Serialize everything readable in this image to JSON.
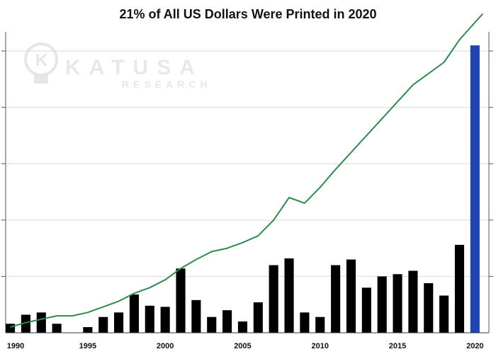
{
  "chart_data": {
    "type": "bar",
    "title": "21% of All US Dollars Were Printed in 2020",
    "x_tick_labels": [
      "1990",
      "1995",
      "2000",
      "2005",
      "2010",
      "2015",
      "2020"
    ],
    "x": [
      1990,
      1991,
      1992,
      1993,
      1994,
      1995,
      1996,
      1997,
      1998,
      1999,
      2000,
      2001,
      2002,
      2003,
      2004,
      2005,
      2006,
      2007,
      2008,
      2009,
      2010,
      2011,
      2012,
      2013,
      2014,
      2015,
      2016,
      2017,
      2018,
      2019,
      2020
    ],
    "series": [
      {
        "type": "bar",
        "values": [
          0.8,
          1.6,
          1.8,
          0.8,
          0,
          0.5,
          1.4,
          1.8,
          3.4,
          2.4,
          2.3,
          5.7,
          2.9,
          1.4,
          2.0,
          1.0,
          2.7,
          6.0,
          6.6,
          1.8,
          1.4,
          6.0,
          6.5,
          4.0,
          5.0,
          5.2,
          5.5,
          4.4,
          3.3,
          7.8,
          25.5
        ],
        "color": "#000000",
        "highlight_color": "#1f46b0",
        "highlight_index": 30
      },
      {
        "type": "line",
        "x": [
          1990,
          1991,
          1992,
          1993,
          1994,
          1995,
          1996,
          1997,
          1998,
          1999,
          2000,
          2001,
          2002,
          2003,
          2004,
          2005,
          2006,
          2007,
          2008,
          2009,
          2010,
          2011,
          2012,
          2013,
          2014,
          2015,
          2016,
          2017,
          2018,
          2019,
          2020.5
        ],
        "values": [
          0.5,
          0.9,
          1.2,
          1.5,
          1.5,
          1.8,
          2.3,
          2.8,
          3.5,
          4.0,
          4.7,
          5.7,
          6.5,
          7.2,
          7.5,
          8.0,
          8.6,
          10.0,
          12.0,
          11.5,
          12.9,
          14.5,
          16.0,
          17.5,
          19.0,
          20.5,
          22.0,
          23.0,
          24.0,
          26.0,
          28.3
        ],
        "color": "#2f8a4e"
      }
    ],
    "xlim": [
      1989.7,
      2020.9
    ],
    "ylim": [
      0,
      26.7
    ],
    "y_gridlines": [
      5,
      10,
      15,
      20,
      25
    ],
    "grid": true,
    "watermark": [
      "KATUSA",
      "RESEARCH"
    ]
  },
  "colors": {
    "bar": "#000000",
    "highlight_bar": "#1f46b0",
    "line": "#2f8a4e",
    "grid": "#d9d9d9",
    "watermark": "#e8e8e8"
  }
}
